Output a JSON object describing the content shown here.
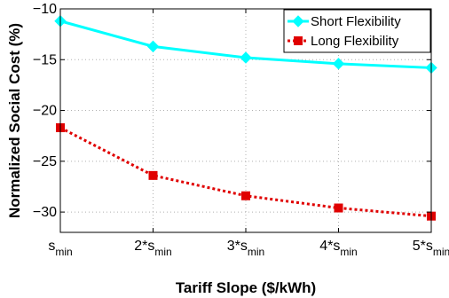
{
  "chart_data": {
    "type": "line",
    "title": "",
    "xlabel": "Tariff Slope ($/kWh)",
    "ylabel": "Normalized Social Cost (%)",
    "x": [
      1,
      2,
      3,
      4,
      5
    ],
    "x_tick_labels": [
      {
        "main": "s",
        "sub": "min"
      },
      {
        "main": "2*s",
        "sub": "min"
      },
      {
        "main": "3*s",
        "sub": "min"
      },
      {
        "main": "4*s",
        "sub": "min"
      },
      {
        "main": "5*s",
        "sub": "min"
      }
    ],
    "xlim": [
      1,
      5
    ],
    "ylim": [
      -32,
      -10
    ],
    "y_ticks": [
      -30,
      -25,
      -20,
      -15,
      -10
    ],
    "y_tick_labels": [
      "−30",
      "−25",
      "−20",
      "−15",
      "−10"
    ],
    "grid": true,
    "legend": "top-right",
    "series": [
      {
        "name": "Short Flexibility",
        "values": [
          -11.2,
          -13.7,
          -14.8,
          -15.4,
          -15.8
        ],
        "color": "#00ffff",
        "marker": "diamond",
        "linestyle": "solid"
      },
      {
        "name": "Long Flexibility",
        "values": [
          -21.7,
          -26.4,
          -28.4,
          -29.6,
          -30.4
        ],
        "color": "#e00000",
        "marker": "square",
        "linestyle": "dotted"
      }
    ]
  }
}
